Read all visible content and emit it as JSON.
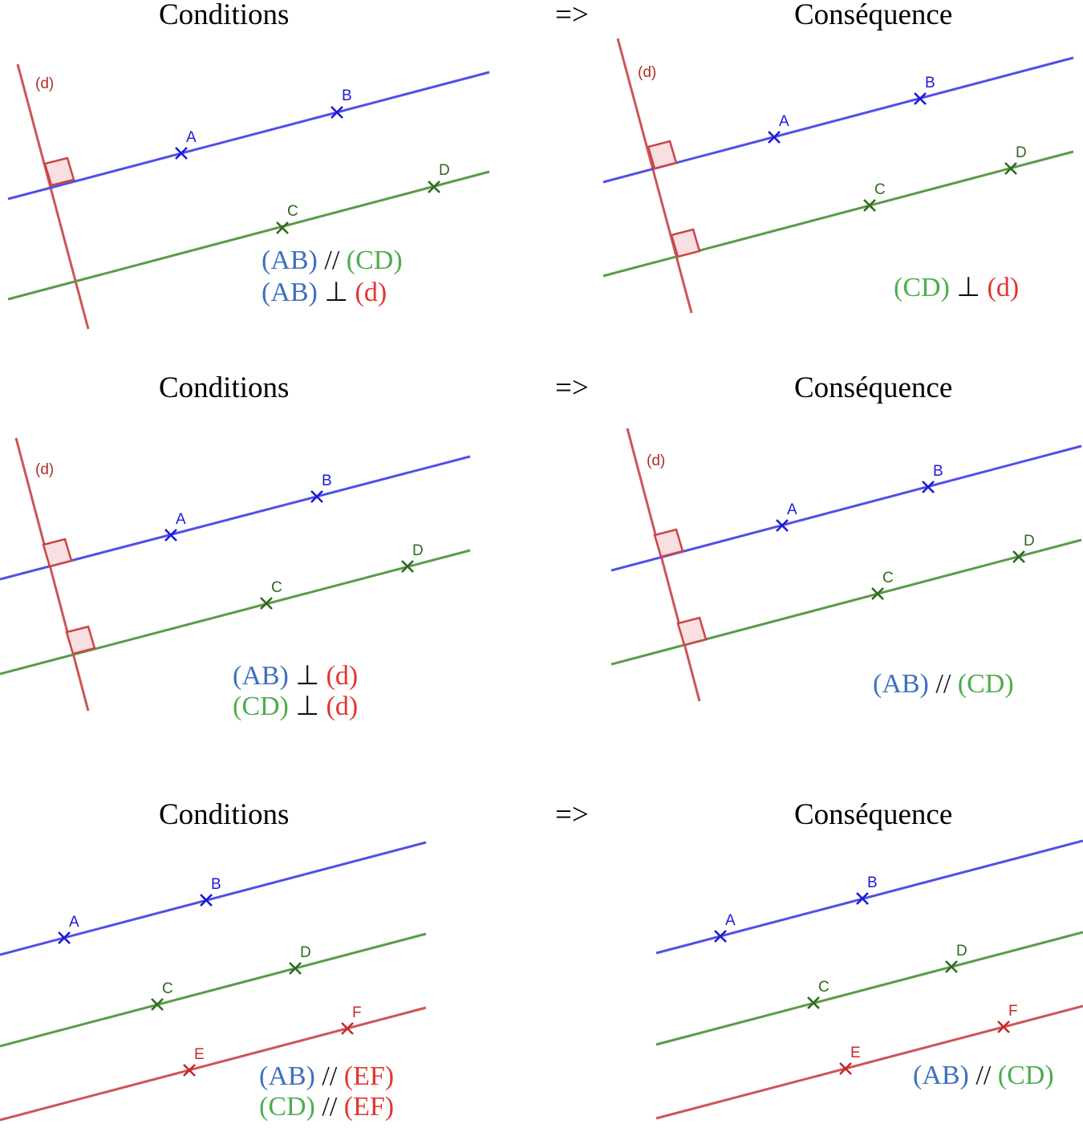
{
  "rows": [
    {
      "left_title": "Conditions",
      "arrow": "=>",
      "right_title": "Conséquence",
      "left_statements": [
        {
          "a": "(AB)",
          "op": "//",
          "b": "(CD)"
        },
        {
          "a": "(AB)",
          "op": "⊥",
          "b": "(d)"
        }
      ],
      "right_statements": [
        {
          "a": "(CD)",
          "op": "⊥",
          "b": "(d)"
        }
      ]
    },
    {
      "left_title": "Conditions",
      "arrow": "=>",
      "right_title": "Conséquence",
      "left_statements": [
        {
          "a": "(AB)",
          "op": "⊥",
          "b": "(d)"
        },
        {
          "a": "(CD)",
          "op": "⊥",
          "b": "(d)"
        }
      ],
      "right_statements": [
        {
          "a": "(AB)",
          "op": "//",
          "b": "(CD)"
        }
      ]
    },
    {
      "left_title": "Conditions",
      "arrow": "=>",
      "right_title": "Conséquence",
      "left_statements": [
        {
          "a": "(AB)",
          "op": "//",
          "b": "(EF)"
        },
        {
          "a": "(CD)",
          "op": "//",
          "b": "(EF)"
        }
      ],
      "right_statements": [
        {
          "a": "(AB)",
          "op": "//",
          "b": "(CD)"
        }
      ]
    }
  ],
  "labels": {
    "A": "A",
    "B": "B",
    "C": "C",
    "D": "D",
    "E": "E",
    "F": "F",
    "d": "(d)"
  },
  "colors": {
    "blue_line": "#5050e8",
    "green_line": "#5a9a4a",
    "red_line": "#cc5555",
    "blue_point": "#1a1ad6",
    "green_point": "#2d6a1f",
    "red_point": "#c62828"
  }
}
